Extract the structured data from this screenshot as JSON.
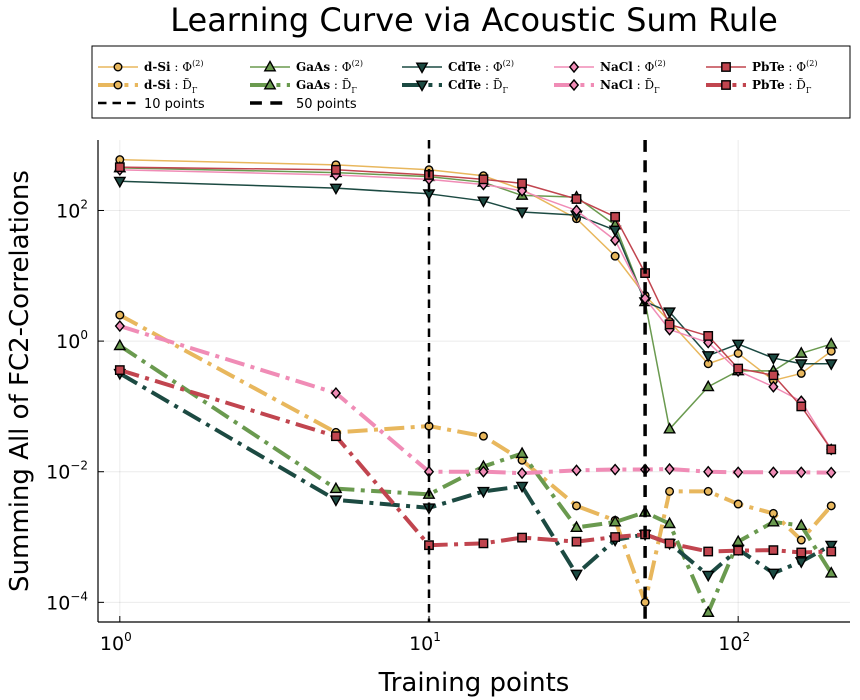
{
  "chart_data": {
    "type": "line",
    "title": "Learning Curve via Acoustic Sum Rule",
    "xlabel": "Training points",
    "ylabel": "Summing All of FC2-Correlations",
    "xscale": "log",
    "yscale": "log",
    "xlim": [
      0.85,
      230
    ],
    "ylim": [
      5e-05,
      1200
    ],
    "xticks": [
      {
        "base": "10",
        "exp": "0",
        "value": 1
      },
      {
        "base": "10",
        "exp": "1",
        "value": 10
      },
      {
        "base": "10",
        "exp": "2",
        "value": 100
      }
    ],
    "yticks": [
      {
        "base": "10",
        "exp": "−4",
        "value": 0.0001
      },
      {
        "base": "10",
        "exp": "−2",
        "value": 0.01
      },
      {
        "base": "10",
        "exp": "0",
        "value": 1
      },
      {
        "base": "10",
        "exp": "2",
        "value": 100
      }
    ],
    "grid": true,
    "legend_position": "top",
    "vlines": [
      {
        "name": "10 points",
        "x": 10,
        "style": "dashed",
        "width": 2.5
      },
      {
        "name": "50 points",
        "x": 50,
        "style": "dashed",
        "width": 3.5
      }
    ],
    "series": [
      {
        "name": "d-Si : Φ(2)",
        "material": "d-Si",
        "symbol": "Φ",
        "sup": "(2)",
        "sub": "",
        "color": "#E8B75D",
        "marker": "circle",
        "style": "solid",
        "width": 1.5,
        "x": [
          1,
          5,
          10,
          15,
          20,
          30,
          40,
          50,
          60,
          80,
          100,
          130,
          160,
          200
        ],
        "y": [
          600,
          500,
          420,
          340,
          210,
          75,
          20,
          5,
          2,
          0.45,
          0.65,
          0.25,
          0.32,
          0.7
        ]
      },
      {
        "name": "d-Si : D̃Γ",
        "material": "d-Si",
        "symbol": "D̃",
        "sup": "",
        "sub": "Γ",
        "color": "#E8B75D",
        "marker": "circle",
        "style": "dashdot",
        "width": 4,
        "x": [
          1,
          5,
          10,
          15,
          20,
          30,
          40,
          50,
          60,
          80,
          100,
          130,
          160,
          200
        ],
        "y": [
          2.5,
          0.04,
          0.05,
          0.035,
          0.015,
          0.003,
          0.0018,
          0.0001,
          0.005,
          0.005,
          0.0032,
          0.0023,
          0.0009,
          0.003
        ]
      },
      {
        "name": "GaAs : Φ(2)",
        "material": "GaAs",
        "symbol": "Φ",
        "sup": "(2)",
        "sub": "",
        "color": "#6A9A4F",
        "marker": "triangle",
        "style": "solid",
        "width": 1.5,
        "x": [
          1,
          5,
          10,
          15,
          20,
          30,
          40,
          50,
          60,
          80,
          100,
          130,
          160,
          200
        ],
        "y": [
          450,
          380,
          330,
          270,
          170,
          160,
          60,
          4,
          0.045,
          0.2,
          0.35,
          0.35,
          0.65,
          0.9
        ]
      },
      {
        "name": "GaAs : D̃Γ",
        "material": "GaAs",
        "symbol": "D̃",
        "sup": "",
        "sub": "Γ",
        "color": "#6A9A4F",
        "marker": "triangle",
        "style": "dashdot",
        "width": 4,
        "x": [
          1,
          5,
          10,
          15,
          20,
          30,
          40,
          50,
          60,
          80,
          100,
          130,
          160,
          200
        ],
        "y": [
          0.85,
          0.0055,
          0.0045,
          0.012,
          0.019,
          0.0014,
          0.0017,
          0.0024,
          0.0016,
          7e-05,
          0.00085,
          0.0017,
          0.0015,
          0.00028
        ]
      },
      {
        "name": "CdTe : Φ(2)",
        "material": "CdTe",
        "symbol": "Φ",
        "sup": "(2)",
        "sub": "",
        "color": "#1C4A42",
        "marker": "triangle-down",
        "style": "solid",
        "width": 1.5,
        "x": [
          1,
          5,
          10,
          15,
          20,
          30,
          40,
          50,
          60,
          80,
          100,
          130,
          160,
          200
        ],
        "y": [
          280,
          220,
          180,
          140,
          95,
          85,
          50,
          4,
          2.8,
          0.6,
          0.9,
          0.55,
          0.45,
          0.45
        ]
      },
      {
        "name": "CdTe : D̃Γ",
        "material": "CdTe",
        "symbol": "D̃",
        "sup": "",
        "sub": "Γ",
        "color": "#1C4A42",
        "marker": "triangle-down",
        "style": "dashdot",
        "width": 4,
        "x": [
          1,
          5,
          10,
          15,
          20,
          30,
          40,
          50,
          60,
          80,
          100,
          130,
          160,
          200
        ],
        "y": [
          0.32,
          0.0037,
          0.0028,
          0.005,
          0.006,
          0.00027,
          0.0009,
          0.0011,
          0.0008,
          0.00026,
          0.00065,
          0.00028,
          0.00042,
          0.00075
        ]
      },
      {
        "name": "NaCl : Φ(2)",
        "material": "NaCl",
        "symbol": "Φ",
        "sup": "(2)",
        "sub": "",
        "color": "#F08CB6",
        "marker": "diamond",
        "style": "solid",
        "width": 1.5,
        "x": [
          1,
          5,
          10,
          15,
          20,
          30,
          40,
          50,
          60,
          80,
          100,
          130,
          160,
          200
        ],
        "y": [
          420,
          350,
          300,
          250,
          200,
          100,
          35,
          4.5,
          1.5,
          0.95,
          0.35,
          0.2,
          0.12,
          0.022
        ]
      },
      {
        "name": "NaCl : D̃Γ",
        "material": "NaCl",
        "symbol": "D̃",
        "sup": "",
        "sub": "Γ",
        "color": "#F08CB6",
        "marker": "diamond",
        "style": "dashdot",
        "width": 4,
        "x": [
          1,
          5,
          10,
          15,
          20,
          30,
          40,
          50,
          60,
          80,
          100,
          130,
          160,
          200
        ],
        "y": [
          1.7,
          0.16,
          0.01,
          0.01,
          0.0095,
          0.0105,
          0.0108,
          0.0108,
          0.011,
          0.01,
          0.0098,
          0.0098,
          0.0098,
          0.0097
        ]
      },
      {
        "name": "PbTe : Φ(2)",
        "material": "PbTe",
        "symbol": "Φ",
        "sup": "(2)",
        "sub": "",
        "color": "#C1454F",
        "marker": "square",
        "style": "solid",
        "width": 1.5,
        "x": [
          1,
          5,
          10,
          15,
          20,
          30,
          40,
          50,
          60,
          80,
          100,
          130,
          160,
          200
        ],
        "y": [
          460,
          420,
          350,
          300,
          260,
          150,
          80,
          11,
          1.8,
          1.2,
          0.38,
          0.3,
          0.1,
          0.022
        ]
      },
      {
        "name": "PbTe : D̃Γ",
        "material": "PbTe",
        "symbol": "D̃",
        "sup": "",
        "sub": "Γ",
        "color": "#C1454F",
        "marker": "square",
        "style": "dashdot",
        "width": 4,
        "x": [
          1,
          5,
          10,
          15,
          20,
          30,
          40,
          50,
          60,
          80,
          100,
          130,
          160,
          200
        ],
        "y": [
          0.36,
          0.035,
          0.00075,
          0.0008,
          0.00098,
          0.00085,
          0.001,
          0.0011,
          0.0008,
          0.0006,
          0.00062,
          0.00063,
          0.00058,
          0.0006
        ]
      }
    ]
  }
}
